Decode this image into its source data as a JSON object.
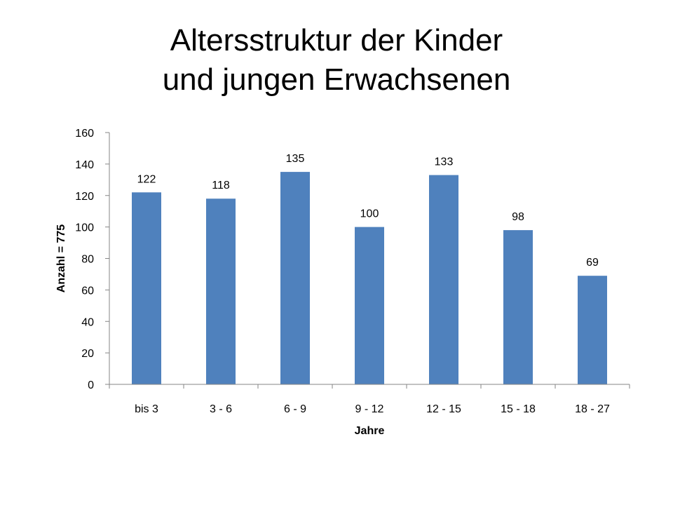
{
  "title_line1": "Altersstruktur der Kinder",
  "title_line2": "und jungen Erwachsenen",
  "colors": {
    "bar": "#4F81BD",
    "axis": "#868686"
  },
  "chart_data": {
    "type": "bar",
    "title": "Altersstruktur der Kinder und jungen Erwachsenen",
    "categories": [
      "bis 3",
      "3 - 6",
      "6 - 9",
      "9 - 12",
      "12 - 15",
      "15 - 18",
      "18 - 27"
    ],
    "values": [
      122,
      118,
      135,
      100,
      133,
      98,
      69
    ],
    "data_labels": [
      "122",
      "118",
      "135",
      "100",
      "133",
      "98",
      "69"
    ],
    "xlabel": "Jahre",
    "ylabel": "Anzahl = 775",
    "ylim": [
      0,
      160
    ],
    "yticks": [
      0,
      20,
      40,
      60,
      80,
      100,
      120,
      140,
      160
    ],
    "grid": false,
    "legend": "none"
  }
}
